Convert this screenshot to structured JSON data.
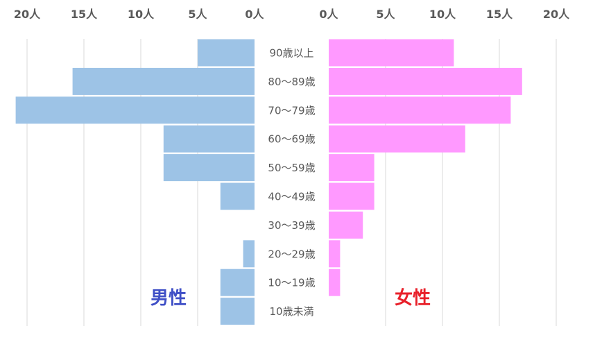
{
  "chart_data": {
    "type": "bar",
    "orientation": "horizontal",
    "layout": "population-pyramid",
    "categories": [
      "90歳以上",
      "80〜89歳",
      "70〜79歳",
      "60〜69歳",
      "50〜59歳",
      "40〜49歳",
      "30〜39歳",
      "20〜29歳",
      "10〜19歳",
      "10歳未満"
    ],
    "series": [
      {
        "name": "男性",
        "side": "left",
        "color": "#9dc3e6",
        "label_color": "#3f4fc6",
        "values": [
          5,
          16,
          21,
          8,
          8,
          3,
          0,
          1,
          3,
          3
        ]
      },
      {
        "name": "女性",
        "side": "right",
        "color": "#ff99ff",
        "label_color": "#e8202a",
        "values": [
          11,
          17,
          16,
          12,
          4,
          4,
          3,
          1,
          1,
          0
        ]
      }
    ],
    "left_axis_ticks": [
      "20人",
      "15人",
      "10人",
      "5人",
      "0人"
    ],
    "right_axis_ticks": [
      "0人",
      "5人",
      "10人",
      "15人",
      "20人"
    ],
    "tick_values": [
      0,
      5,
      10,
      15,
      20
    ],
    "xlim": [
      0,
      20
    ],
    "grid": true,
    "gridline_color": "#d9d9d9"
  }
}
